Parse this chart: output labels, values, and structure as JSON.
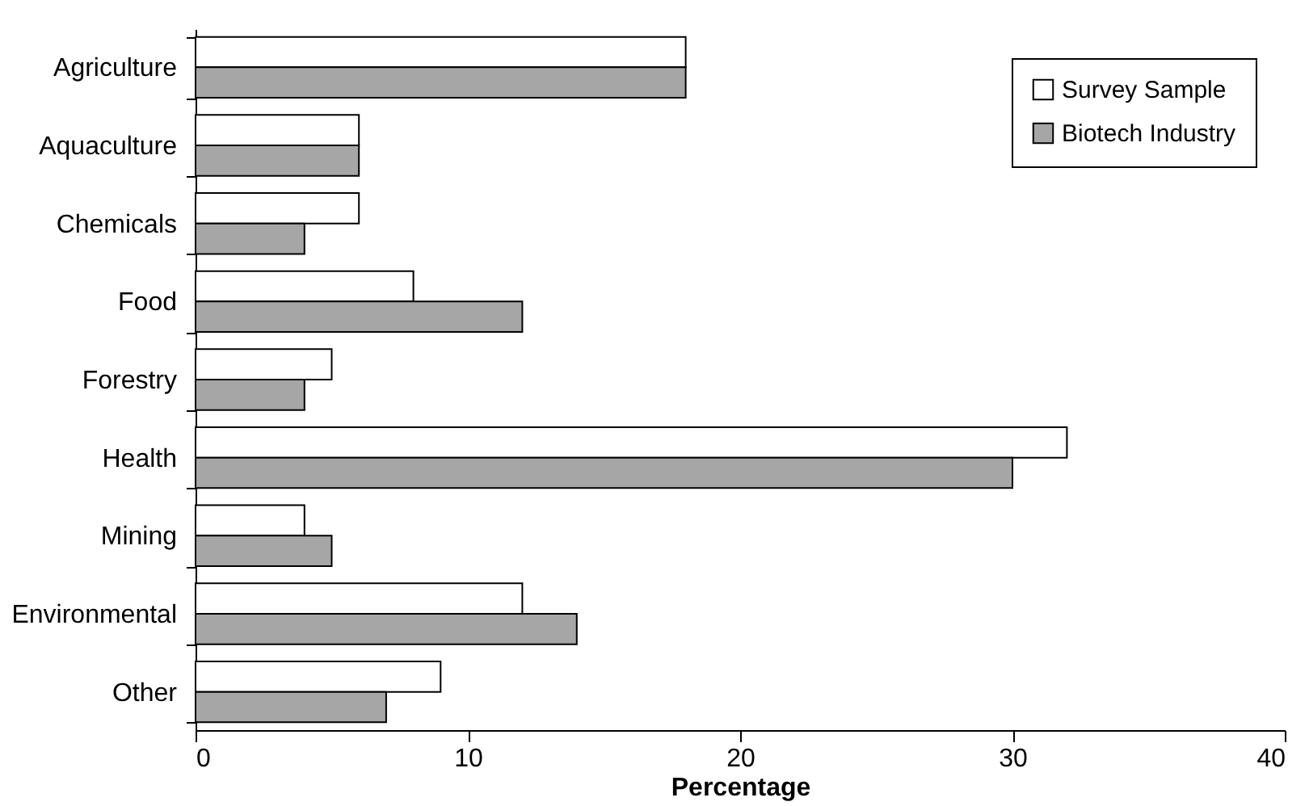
{
  "chart_data": {
    "type": "bar",
    "orientation": "horizontal",
    "xlabel": "Percentage",
    "categories": [
      "Agriculture",
      "Aquaculture",
      "Chemicals",
      "Food",
      "Forestry",
      "Health",
      "Mining",
      "Environmental",
      "Other"
    ],
    "series": [
      {
        "name": "Survey Sample",
        "color": "#ffffff",
        "values": [
          18,
          6,
          6,
          8,
          5,
          32,
          4,
          12,
          9
        ]
      },
      {
        "name": "Biotech Industry",
        "color": "#a6a6a6",
        "values": [
          18,
          6,
          4,
          12,
          4,
          30,
          5,
          14,
          7
        ]
      }
    ],
    "xlim": [
      0,
      40
    ],
    "xticks": [
      0,
      10,
      20,
      30,
      40
    ],
    "grid": false,
    "legend": "top right"
  }
}
